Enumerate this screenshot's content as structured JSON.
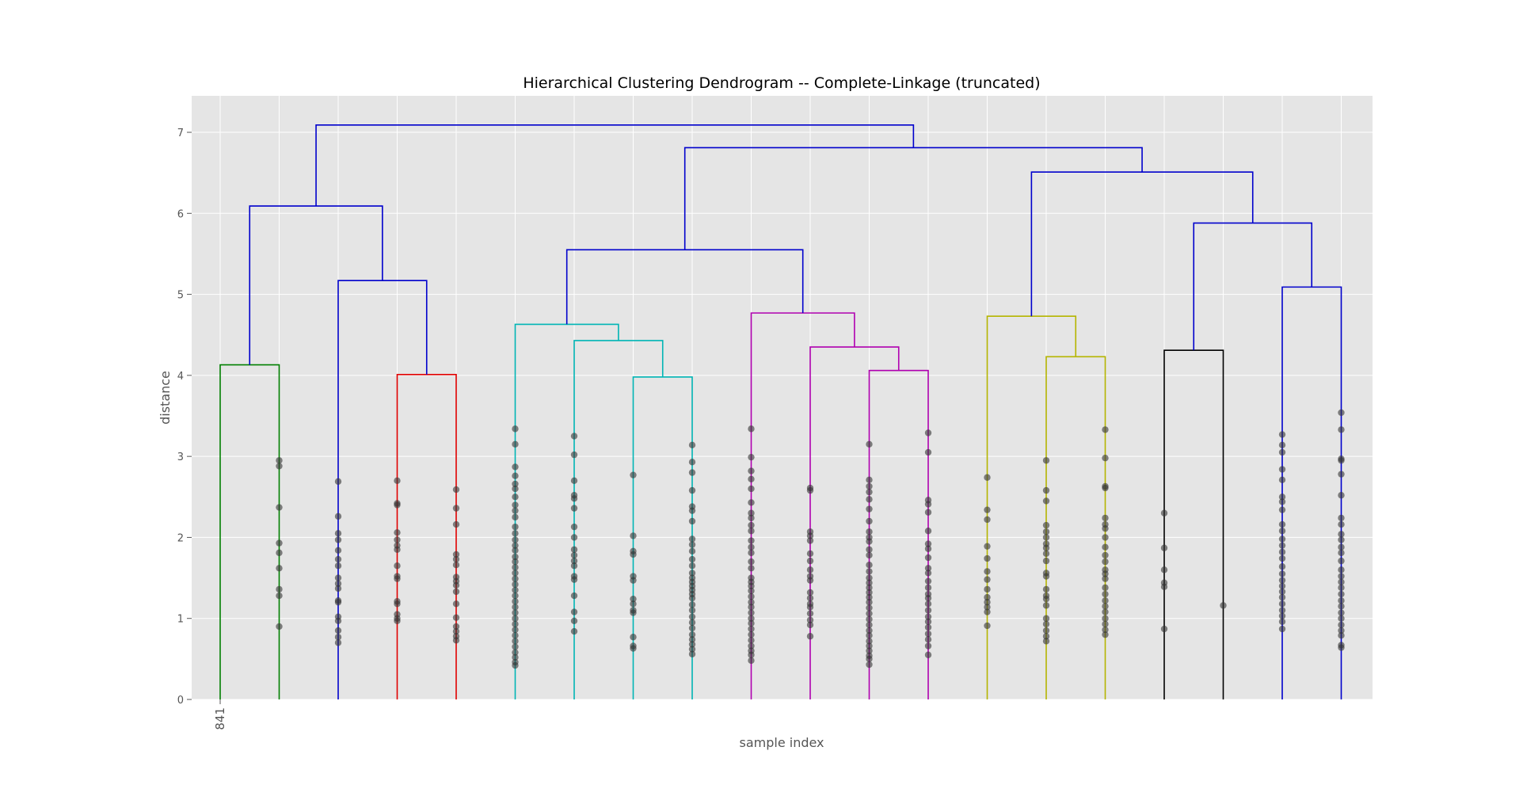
{
  "chart_data": {
    "type": "dendrogram",
    "title": "Hierarchical Clustering Dendrogram -- Complete-Linkage (truncated)",
    "xlabel": "sample index",
    "ylabel": "distance",
    "ylim": [
      0,
      7.45
    ],
    "yticks": [
      0,
      1,
      2,
      3,
      4,
      5,
      6,
      7
    ],
    "ytick_labels": [
      "0",
      "1",
      "2",
      "3",
      "4",
      "5",
      "6",
      "7"
    ],
    "grid": true,
    "leaf_count": 20,
    "xtick_labels": [
      {
        "leaf": 0,
        "label": "841"
      }
    ],
    "colors": {
      "background": "#e5e5e5",
      "grid": "#ffffff",
      "point": "#333333",
      "above_threshold": "#0000cc"
    },
    "links": [
      {
        "x0": 0,
        "x1": 1,
        "h0": 0,
        "h1": 0,
        "h": 4.13,
        "color": "#008000"
      },
      {
        "x0": 3,
        "x1": 4,
        "h0": 0,
        "h1": 0,
        "h": 4.01,
        "color": "#e00000"
      },
      {
        "x0": 2,
        "x1": 3.5,
        "h0": 0,
        "h1": 4.01,
        "h": 5.17,
        "color": "#0000cc"
      },
      {
        "x0": 0.5,
        "x1": 2.75,
        "h0": 4.13,
        "h1": 5.17,
        "h": 6.09,
        "color": "#0000cc"
      },
      {
        "x0": 7,
        "x1": 8,
        "h0": 0,
        "h1": 0,
        "h": 3.98,
        "color": "#00b5b5"
      },
      {
        "x0": 6,
        "x1": 7.5,
        "h0": 0,
        "h1": 3.98,
        "h": 4.43,
        "color": "#00b5b5"
      },
      {
        "x0": 5,
        "x1": 6.75,
        "h0": 0,
        "h1": 4.43,
        "h": 4.63,
        "color": "#00b5b5"
      },
      {
        "x0": 11,
        "x1": 12,
        "h0": 0,
        "h1": 0,
        "h": 4.06,
        "color": "#b000b0"
      },
      {
        "x0": 10,
        "x1": 11.5,
        "h0": 0,
        "h1": 4.06,
        "h": 4.35,
        "color": "#b000b0"
      },
      {
        "x0": 9,
        "x1": 10.75,
        "h0": 0,
        "h1": 4.35,
        "h": 4.77,
        "color": "#b000b0"
      },
      {
        "x0": 5.875,
        "x1": 9.875,
        "h0": 4.63,
        "h1": 4.77,
        "h": 5.55,
        "color": "#0000cc"
      },
      {
        "x0": 14,
        "x1": 15,
        "h0": 0,
        "h1": 0,
        "h": 4.23,
        "color": "#b5b500"
      },
      {
        "x0": 13,
        "x1": 14.5,
        "h0": 0,
        "h1": 4.23,
        "h": 4.73,
        "color": "#b5b500"
      },
      {
        "x0": 16,
        "x1": 17,
        "h0": 0,
        "h1": 0,
        "h": 4.31,
        "color": "#000000"
      },
      {
        "x0": 18,
        "x1": 19,
        "h0": 0,
        "h1": 0,
        "h": 5.09,
        "color": "#0000cc"
      },
      {
        "x0": 16.5,
        "x1": 18.5,
        "h0": 4.31,
        "h1": 5.09,
        "h": 5.88,
        "color": "#0000cc"
      },
      {
        "x0": 13.75,
        "x1": 17.5,
        "h0": 4.73,
        "h1": 5.88,
        "h": 6.51,
        "color": "#0000cc"
      },
      {
        "x0": 7.875,
        "x1": 15.625,
        "h0": 5.55,
        "h1": 6.51,
        "h": 6.81,
        "color": "#0000cc"
      },
      {
        "x0": 1.625,
        "x1": 11.75,
        "h0": 6.09,
        "h1": 6.81,
        "h": 7.09,
        "color": "#0000cc"
      }
    ],
    "leaf_points": [
      {
        "leaf": 1,
        "y": [
          2.95,
          2.88,
          2.37,
          1.93,
          1.81,
          1.62,
          1.36,
          1.28,
          0.9
        ]
      },
      {
        "leaf": 2,
        "y": [
          2.69,
          2.26,
          2.05,
          1.97,
          1.84,
          1.73,
          1.65,
          1.5,
          1.43,
          1.37,
          1.22,
          1.2,
          1.02,
          0.97,
          0.85,
          0.77,
          0.7
        ]
      },
      {
        "leaf": 3,
        "y": [
          2.7,
          2.42,
          2.4,
          2.06,
          1.97,
          1.9,
          1.85,
          1.65,
          1.52,
          1.49,
          1.21,
          1.18,
          1.05,
          1.0,
          0.97
        ]
      },
      {
        "leaf": 4,
        "y": [
          2.59,
          2.36,
          2.16,
          1.79,
          1.73,
          1.66,
          1.51,
          1.46,
          1.41,
          1.33,
          1.18,
          1.01,
          0.9,
          0.84,
          0.78,
          0.73
        ]
      },
      {
        "leaf": 5,
        "y": [
          3.34,
          3.15,
          2.87,
          2.76,
          2.66,
          2.6,
          2.5,
          2.4,
          2.33,
          2.25,
          2.13,
          2.05,
          1.97,
          1.9,
          1.84,
          1.76,
          1.7,
          1.63,
          1.56,
          1.49,
          1.42,
          1.35,
          1.28,
          1.21,
          1.14,
          1.07,
          1.0,
          0.93,
          0.86,
          0.79,
          0.72,
          0.65,
          0.58,
          0.52,
          0.46,
          0.42
        ]
      },
      {
        "leaf": 6,
        "y": [
          3.25,
          3.02,
          2.7,
          2.52,
          2.48,
          2.36,
          2.13,
          2.0,
          1.85,
          1.78,
          1.71,
          1.65,
          1.52,
          1.48,
          1.28,
          1.08,
          0.97,
          0.84
        ]
      },
      {
        "leaf": 7,
        "y": [
          2.77,
          2.02,
          1.83,
          1.79,
          1.52,
          1.47,
          1.24,
          1.18,
          1.1,
          1.07,
          0.77,
          0.66,
          0.63
        ]
      },
      {
        "leaf": 8,
        "y": [
          3.14,
          2.93,
          2.8,
          2.58,
          2.38,
          2.33,
          2.2,
          1.98,
          1.91,
          1.83,
          1.73,
          1.65,
          1.56,
          1.5,
          1.45,
          1.4,
          1.35,
          1.3,
          1.25,
          1.17,
          1.1,
          1.02,
          0.95,
          0.88,
          0.8,
          0.74,
          0.68,
          0.62,
          0.56
        ]
      },
      {
        "leaf": 9,
        "y": [
          3.34,
          2.99,
          2.82,
          2.72,
          2.6,
          2.43,
          2.3,
          2.24,
          2.15,
          2.08,
          1.96,
          1.88,
          1.81,
          1.7,
          1.62,
          1.5,
          1.45,
          1.4,
          1.34,
          1.27,
          1.2,
          1.14,
          1.07,
          1.0,
          0.94,
          0.87,
          0.8,
          0.73,
          0.66,
          0.6,
          0.55,
          0.48
        ]
      },
      {
        "leaf": 10,
        "y": [
          2.61,
          2.58,
          2.07,
          2.02,
          1.96,
          1.8,
          1.71,
          1.6,
          1.52,
          1.47,
          1.32,
          1.25,
          1.18,
          1.14,
          1.06,
          0.98,
          0.92,
          0.78
        ]
      },
      {
        "leaf": 11,
        "y": [
          3.15,
          2.71,
          2.63,
          2.56,
          2.47,
          2.35,
          2.2,
          2.07,
          2.0,
          1.95,
          1.85,
          1.78,
          1.66,
          1.58,
          1.5,
          1.44,
          1.38,
          1.32,
          1.26,
          1.2,
          1.13,
          1.06,
          0.99,
          0.92,
          0.85,
          0.79,
          0.72,
          0.66,
          0.6,
          0.54,
          0.5,
          0.43
        ]
      },
      {
        "leaf": 12,
        "y": [
          3.29,
          3.05,
          2.46,
          2.41,
          2.31,
          2.08,
          1.92,
          1.86,
          1.75,
          1.62,
          1.56,
          1.46,
          1.38,
          1.3,
          1.25,
          1.18,
          1.1,
          1.02,
          0.96,
          0.89,
          0.81,
          0.74,
          0.66,
          0.55
        ]
      },
      {
        "leaf": 13,
        "y": [
          2.74,
          2.34,
          2.22,
          1.89,
          1.74,
          1.58,
          1.48,
          1.36,
          1.26,
          1.2,
          1.14,
          1.08,
          0.91
        ]
      },
      {
        "leaf": 14,
        "y": [
          2.95,
          2.58,
          2.45,
          2.15,
          2.07,
          2.0,
          1.92,
          1.87,
          1.8,
          1.71,
          1.56,
          1.52,
          1.36,
          1.28,
          1.24,
          1.16,
          1.0,
          0.93,
          0.85,
          0.78,
          0.72
        ]
      },
      {
        "leaf": 15,
        "y": [
          3.33,
          2.98,
          2.63,
          2.61,
          2.24,
          2.16,
          2.11,
          2.0,
          1.88,
          1.78,
          1.7,
          1.6,
          1.55,
          1.49,
          1.38,
          1.3,
          1.22,
          1.15,
          1.08,
          1.0,
          0.93,
          0.86,
          0.8
        ]
      },
      {
        "leaf": 16,
        "y": [
          2.3,
          1.87,
          1.6,
          1.44,
          1.39,
          0.87
        ]
      },
      {
        "leaf": 17,
        "y": [
          1.16
        ]
      },
      {
        "leaf": 18,
        "y": [
          3.27,
          3.14,
          3.05,
          2.84,
          2.71,
          2.5,
          2.44,
          2.34,
          2.16,
          2.08,
          1.98,
          1.9,
          1.82,
          1.74,
          1.64,
          1.55,
          1.47,
          1.4,
          1.33,
          1.26,
          1.18,
          1.1,
          1.03,
          0.96,
          0.87
        ]
      },
      {
        "leaf": 19,
        "y": [
          3.54,
          3.33,
          2.97,
          2.95,
          2.78,
          2.52,
          2.24,
          2.16,
          2.04,
          1.97,
          1.88,
          1.81,
          1.71,
          1.6,
          1.52,
          1.45,
          1.38,
          1.3,
          1.22,
          1.15,
          1.07,
          1.0,
          0.92,
          0.85,
          0.79,
          0.67,
          0.64
        ]
      }
    ]
  }
}
